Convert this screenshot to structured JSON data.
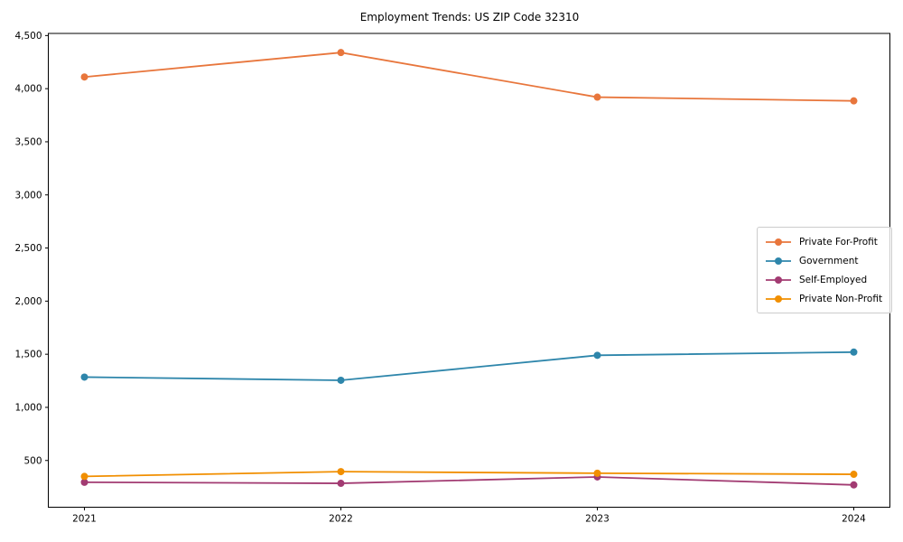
{
  "chart_data": {
    "type": "line",
    "title": "Employment Trends: US ZIP Code 32310",
    "xlabel": "",
    "ylabel": "",
    "x": [
      "2021",
      "2022",
      "2023",
      "2024"
    ],
    "series": [
      {
        "name": "Private For-Profit",
        "color": "#e8763c",
        "values": [
          4110,
          4340,
          3920,
          3885
        ]
      },
      {
        "name": "Government",
        "color": "#2e86ab",
        "values": [
          1285,
          1255,
          1490,
          1520
        ]
      },
      {
        "name": "Self-Employed",
        "color": "#a23b72",
        "values": [
          295,
          285,
          345,
          270
        ]
      },
      {
        "name": "Private Non-Profit",
        "color": "#f18f01",
        "values": [
          350,
          395,
          380,
          370
        ]
      }
    ],
    "ylim": [
      60,
      4520
    ],
    "yticks": [
      500,
      1000,
      1500,
      2000,
      2500,
      3000,
      3500,
      4000,
      4500
    ],
    "ytick_labels": [
      "500",
      "1,000",
      "1,500",
      "2,000",
      "2,500",
      "3,000",
      "3,500",
      "4,000",
      "4,500"
    ],
    "grid": false,
    "legend_position": "center right",
    "background": "#ffffff",
    "axis_color": "#000000",
    "marker": "o",
    "marker_radius": 4,
    "line_width": 1.8
  }
}
